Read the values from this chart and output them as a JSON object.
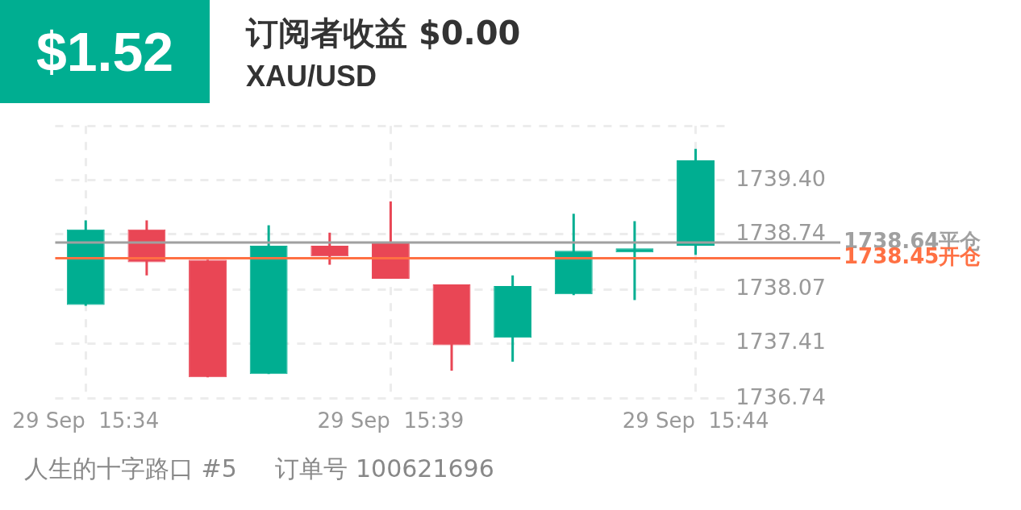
{
  "chart_data": {
    "type": "candlestick",
    "title": "订阅者收益 $0.00",
    "subtitle": "XAU/USD",
    "annotations": [
      "$1.52",
      "人生的十字路口 #5",
      "订单号 100621696"
    ],
    "categories": [
      "29 Sep  15:34",
      null,
      null,
      null,
      null,
      "29 Sep  15:39",
      null,
      null,
      null,
      null,
      "29 Sep  15:44"
    ],
    "ohlc": [
      [
        1737.88,
        1738.91,
        1737.87,
        1738.8
      ],
      [
        1738.8,
        1738.91,
        1738.24,
        1738.4
      ],
      [
        1738.43,
        1738.43,
        1737.0,
        1737.0
      ],
      [
        1737.04,
        1738.85,
        1737.04,
        1738.6
      ],
      [
        1738.6,
        1738.76,
        1738.37,
        1738.47
      ],
      [
        1738.63,
        1739.14,
        1738.2,
        1738.2
      ],
      [
        1738.13,
        1738.13,
        1737.08,
        1737.39
      ],
      [
        1737.48,
        1738.24,
        1737.19,
        1738.11
      ],
      [
        1738.01,
        1738.99,
        1738.0,
        1738.54
      ],
      [
        1738.52,
        1738.9,
        1737.94,
        1738.57
      ],
      [
        1738.6,
        1739.78,
        1738.49,
        1739.64
      ]
    ],
    "colors": [
      "#00ae91",
      "#e94655",
      "#e94655",
      "#00ae91",
      "#e94655",
      "#e94655",
      "#e94655",
      "#00ae91",
      "#00ae91",
      "#00ae91",
      "#00ae91"
    ],
    "ylim": [
      1736.74,
      1740.06
    ],
    "yticks": [
      {
        "value": 1736.74,
        "label": "1736.74"
      },
      {
        "value": 1737.41,
        "label": "1737.41"
      },
      {
        "value": 1738.07,
        "label": "1738.07"
      },
      {
        "value": 1738.74,
        "label": "1738.74"
      },
      {
        "value": 1739.4,
        "label": "1739.40"
      },
      {
        "value": 1740.06,
        "label": null
      }
    ],
    "ref_lines": [
      {
        "axis": "y",
        "value": 1738.64,
        "label": "1738.64平仓",
        "color": "#a0a0a0"
      },
      {
        "axis": "y",
        "value": 1738.45,
        "label": "1738.45开仓",
        "color": "#ff7043"
      }
    ],
    "grid": true,
    "legend": false
  }
}
